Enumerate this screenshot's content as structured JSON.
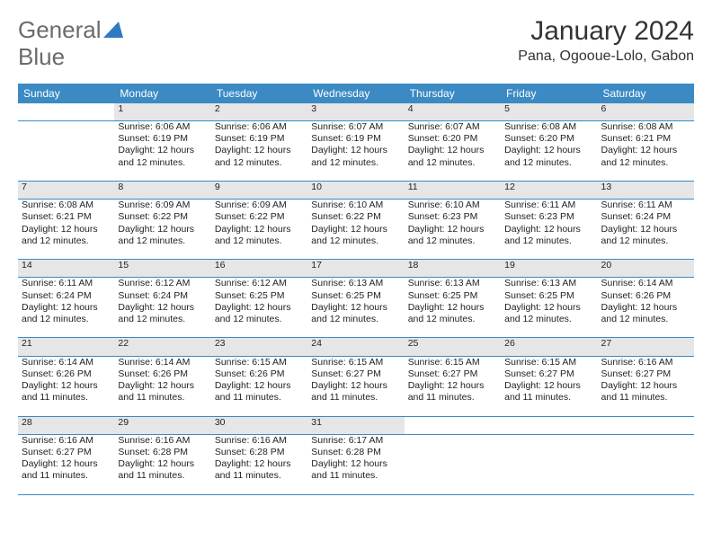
{
  "logo": {
    "text1": "General",
    "text2": "Blue"
  },
  "title": "January 2024",
  "location": "Pana, Ogooue-Lolo, Gabon",
  "colors": {
    "header_bg": "#3b8ac4",
    "header_text": "#ffffff",
    "daynum_bg": "#e6e6e6",
    "daynum_text": "#555555",
    "body_text": "#222222",
    "page_bg": "#ffffff",
    "rule": "#3b8ac4",
    "logo_gray": "#6b6b6b",
    "logo_blue": "#2f7ac0"
  },
  "fonts": {
    "title_size": 30,
    "location_size": 16,
    "th_size": 12,
    "cell_size": 10.5,
    "daynum_size": 11
  },
  "weekdays": [
    "Sunday",
    "Monday",
    "Tuesday",
    "Wednesday",
    "Thursday",
    "Friday",
    "Saturday"
  ],
  "weeks": [
    [
      null,
      {
        "n": "1",
        "sr": "Sunrise: 6:06 AM",
        "ss": "Sunset: 6:19 PM",
        "d1": "Daylight: 12 hours",
        "d2": "and 12 minutes."
      },
      {
        "n": "2",
        "sr": "Sunrise: 6:06 AM",
        "ss": "Sunset: 6:19 PM",
        "d1": "Daylight: 12 hours",
        "d2": "and 12 minutes."
      },
      {
        "n": "3",
        "sr": "Sunrise: 6:07 AM",
        "ss": "Sunset: 6:19 PM",
        "d1": "Daylight: 12 hours",
        "d2": "and 12 minutes."
      },
      {
        "n": "4",
        "sr": "Sunrise: 6:07 AM",
        "ss": "Sunset: 6:20 PM",
        "d1": "Daylight: 12 hours",
        "d2": "and 12 minutes."
      },
      {
        "n": "5",
        "sr": "Sunrise: 6:08 AM",
        "ss": "Sunset: 6:20 PM",
        "d1": "Daylight: 12 hours",
        "d2": "and 12 minutes."
      },
      {
        "n": "6",
        "sr": "Sunrise: 6:08 AM",
        "ss": "Sunset: 6:21 PM",
        "d1": "Daylight: 12 hours",
        "d2": "and 12 minutes."
      }
    ],
    [
      {
        "n": "7",
        "sr": "Sunrise: 6:08 AM",
        "ss": "Sunset: 6:21 PM",
        "d1": "Daylight: 12 hours",
        "d2": "and 12 minutes."
      },
      {
        "n": "8",
        "sr": "Sunrise: 6:09 AM",
        "ss": "Sunset: 6:22 PM",
        "d1": "Daylight: 12 hours",
        "d2": "and 12 minutes."
      },
      {
        "n": "9",
        "sr": "Sunrise: 6:09 AM",
        "ss": "Sunset: 6:22 PM",
        "d1": "Daylight: 12 hours",
        "d2": "and 12 minutes."
      },
      {
        "n": "10",
        "sr": "Sunrise: 6:10 AM",
        "ss": "Sunset: 6:22 PM",
        "d1": "Daylight: 12 hours",
        "d2": "and 12 minutes."
      },
      {
        "n": "11",
        "sr": "Sunrise: 6:10 AM",
        "ss": "Sunset: 6:23 PM",
        "d1": "Daylight: 12 hours",
        "d2": "and 12 minutes."
      },
      {
        "n": "12",
        "sr": "Sunrise: 6:11 AM",
        "ss": "Sunset: 6:23 PM",
        "d1": "Daylight: 12 hours",
        "d2": "and 12 minutes."
      },
      {
        "n": "13",
        "sr": "Sunrise: 6:11 AM",
        "ss": "Sunset: 6:24 PM",
        "d1": "Daylight: 12 hours",
        "d2": "and 12 minutes."
      }
    ],
    [
      {
        "n": "14",
        "sr": "Sunrise: 6:11 AM",
        "ss": "Sunset: 6:24 PM",
        "d1": "Daylight: 12 hours",
        "d2": "and 12 minutes."
      },
      {
        "n": "15",
        "sr": "Sunrise: 6:12 AM",
        "ss": "Sunset: 6:24 PM",
        "d1": "Daylight: 12 hours",
        "d2": "and 12 minutes."
      },
      {
        "n": "16",
        "sr": "Sunrise: 6:12 AM",
        "ss": "Sunset: 6:25 PM",
        "d1": "Daylight: 12 hours",
        "d2": "and 12 minutes."
      },
      {
        "n": "17",
        "sr": "Sunrise: 6:13 AM",
        "ss": "Sunset: 6:25 PM",
        "d1": "Daylight: 12 hours",
        "d2": "and 12 minutes."
      },
      {
        "n": "18",
        "sr": "Sunrise: 6:13 AM",
        "ss": "Sunset: 6:25 PM",
        "d1": "Daylight: 12 hours",
        "d2": "and 12 minutes."
      },
      {
        "n": "19",
        "sr": "Sunrise: 6:13 AM",
        "ss": "Sunset: 6:25 PM",
        "d1": "Daylight: 12 hours",
        "d2": "and 12 minutes."
      },
      {
        "n": "20",
        "sr": "Sunrise: 6:14 AM",
        "ss": "Sunset: 6:26 PM",
        "d1": "Daylight: 12 hours",
        "d2": "and 12 minutes."
      }
    ],
    [
      {
        "n": "21",
        "sr": "Sunrise: 6:14 AM",
        "ss": "Sunset: 6:26 PM",
        "d1": "Daylight: 12 hours",
        "d2": "and 11 minutes."
      },
      {
        "n": "22",
        "sr": "Sunrise: 6:14 AM",
        "ss": "Sunset: 6:26 PM",
        "d1": "Daylight: 12 hours",
        "d2": "and 11 minutes."
      },
      {
        "n": "23",
        "sr": "Sunrise: 6:15 AM",
        "ss": "Sunset: 6:26 PM",
        "d1": "Daylight: 12 hours",
        "d2": "and 11 minutes."
      },
      {
        "n": "24",
        "sr": "Sunrise: 6:15 AM",
        "ss": "Sunset: 6:27 PM",
        "d1": "Daylight: 12 hours",
        "d2": "and 11 minutes."
      },
      {
        "n": "25",
        "sr": "Sunrise: 6:15 AM",
        "ss": "Sunset: 6:27 PM",
        "d1": "Daylight: 12 hours",
        "d2": "and 11 minutes."
      },
      {
        "n": "26",
        "sr": "Sunrise: 6:15 AM",
        "ss": "Sunset: 6:27 PM",
        "d1": "Daylight: 12 hours",
        "d2": "and 11 minutes."
      },
      {
        "n": "27",
        "sr": "Sunrise: 6:16 AM",
        "ss": "Sunset: 6:27 PM",
        "d1": "Daylight: 12 hours",
        "d2": "and 11 minutes."
      }
    ],
    [
      {
        "n": "28",
        "sr": "Sunrise: 6:16 AM",
        "ss": "Sunset: 6:27 PM",
        "d1": "Daylight: 12 hours",
        "d2": "and 11 minutes."
      },
      {
        "n": "29",
        "sr": "Sunrise: 6:16 AM",
        "ss": "Sunset: 6:28 PM",
        "d1": "Daylight: 12 hours",
        "d2": "and 11 minutes."
      },
      {
        "n": "30",
        "sr": "Sunrise: 6:16 AM",
        "ss": "Sunset: 6:28 PM",
        "d1": "Daylight: 12 hours",
        "d2": "and 11 minutes."
      },
      {
        "n": "31",
        "sr": "Sunrise: 6:17 AM",
        "ss": "Sunset: 6:28 PM",
        "d1": "Daylight: 12 hours",
        "d2": "and 11 minutes."
      },
      null,
      null,
      null
    ]
  ]
}
